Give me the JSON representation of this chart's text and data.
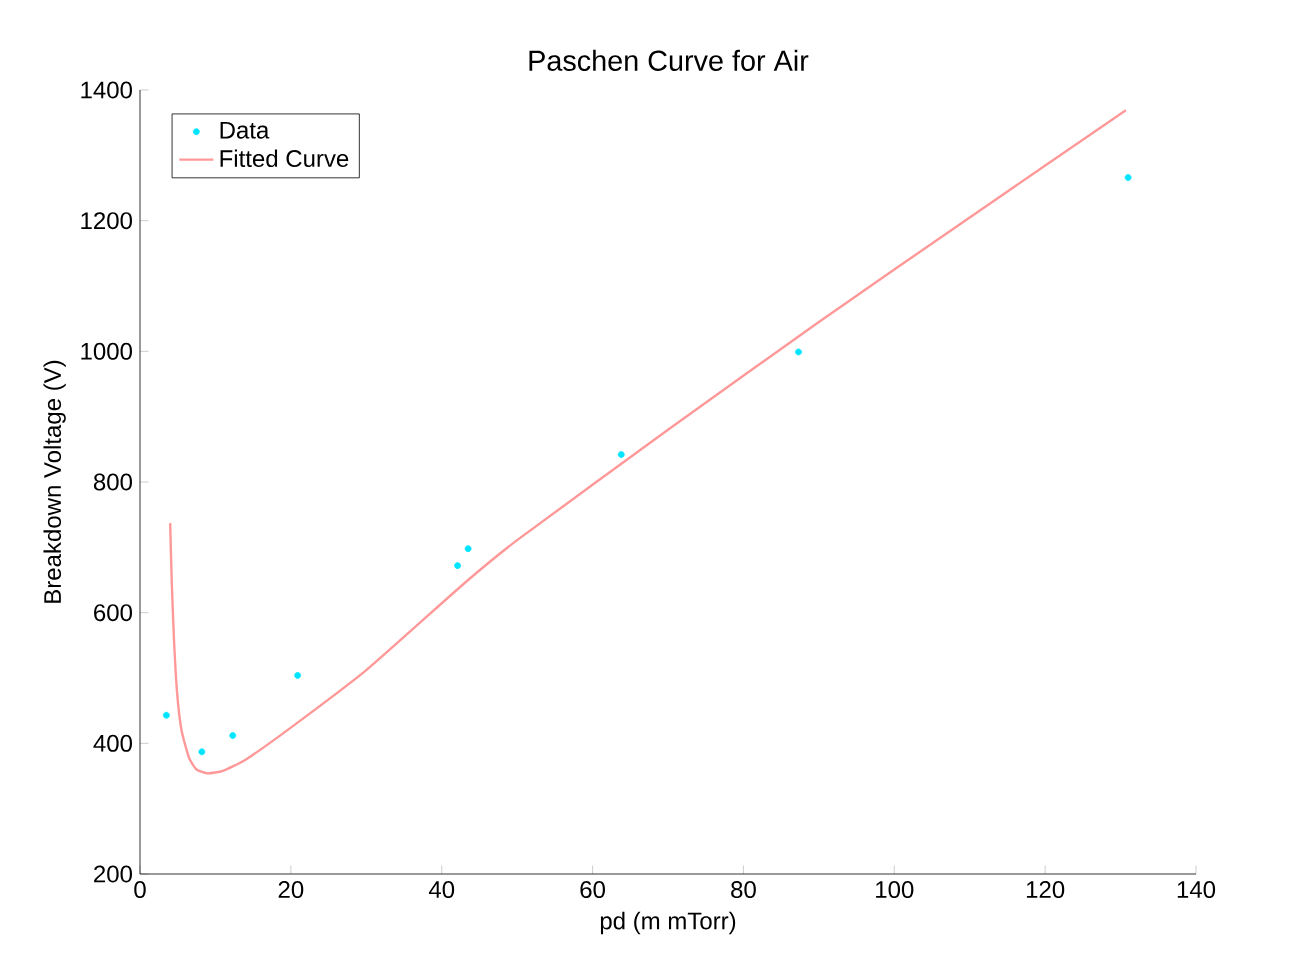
{
  "chart_data": {
    "type": "scatter",
    "title": "Paschen Curve for Air",
    "xlabel": "pd (m mTorr)",
    "ylabel": "Breakdown Voltage (V)",
    "xlim": [
      0,
      140
    ],
    "ylim": [
      200,
      1400
    ],
    "xticks": [
      0,
      20,
      40,
      60,
      80,
      100,
      120,
      140
    ],
    "yticks": [
      200,
      400,
      600,
      800,
      1000,
      1200,
      1400
    ],
    "legend": "top left",
    "grid": false,
    "series": [
      {
        "name": "Data",
        "color": "#00e5ff",
        "marker": "circle",
        "x": [
          3.5,
          8.2,
          12.3,
          20.9,
          42.1,
          43.5,
          63.8,
          87.3,
          131
        ],
        "values": [
          443,
          387,
          412,
          504,
          672,
          698,
          842,
          999,
          1266
        ]
      },
      {
        "name": "Fitted Curve",
        "type": "line",
        "color": "#ff9999",
        "marker": "none",
        "line_style": "solid",
        "x": [
          4.0,
          4.2,
          4.5,
          4.9,
          5.5,
          6.5,
          7.5,
          9,
          11,
          14,
          20,
          30,
          43,
          50,
          70,
          90,
          110,
          130.7
        ],
        "values": [
          737,
          650,
          560,
          480,
          420,
          378,
          360,
          354,
          358,
          375,
          424,
          512,
          645,
          711,
          880,
          1045,
          1205,
          1369
        ]
      }
    ]
  }
}
